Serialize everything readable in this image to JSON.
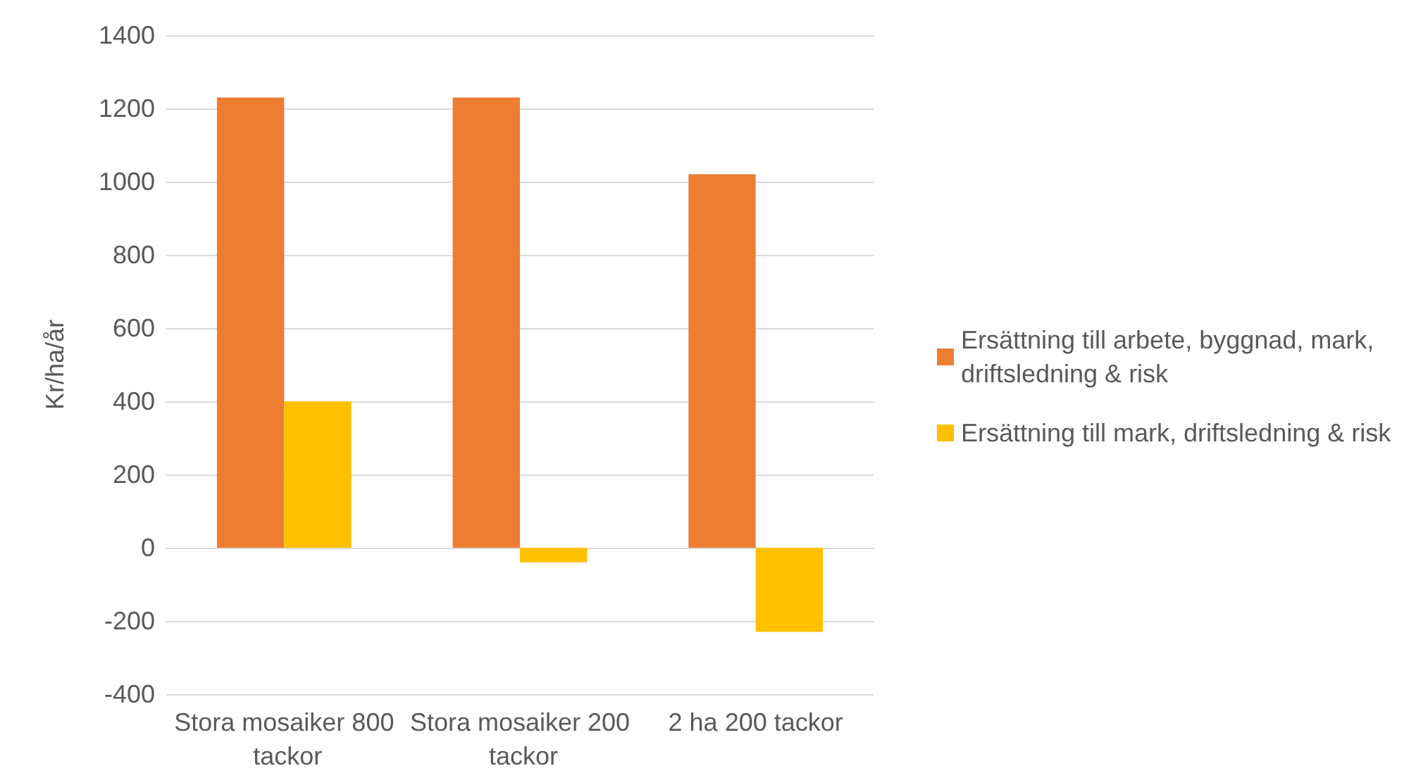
{
  "chart_data": {
    "type": "bar",
    "ylabel": "Kr/ha/år",
    "categories": [
      "Stora mosaiker 800 tackor",
      "Stora mosaiker 200 tackor",
      "2 ha 200 tackor"
    ],
    "series": [
      {
        "name": "Ersättning till arbete, byggnad, mark, driftsledning & risk",
        "color": "#ed7d31",
        "values": [
          1230,
          1230,
          1020
        ]
      },
      {
        "name": "Ersättning till mark, driftsledning & risk",
        "color": "#ffc000",
        "values": [
          400,
          -40,
          -230
        ]
      }
    ],
    "ylim": [
      -400,
      1400
    ],
    "yticks": [
      -400,
      -200,
      0,
      200,
      400,
      600,
      800,
      1000,
      1200,
      1400
    ],
    "grid": "y",
    "legend": "right"
  }
}
